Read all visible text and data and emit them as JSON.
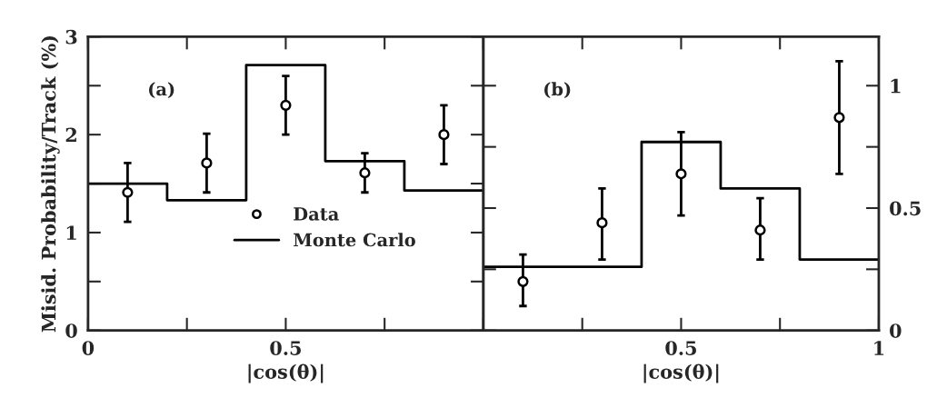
{
  "chart_data": [
    {
      "type": "scatter",
      "xlabel": "|cos(θ)|",
      "ylabel": "Misid. Probability/Track (%)",
      "annotations": [
        "(a)"
      ],
      "xlim": [
        0,
        1
      ],
      "ylim": [
        0,
        3
      ],
      "xticks": [
        0,
        {
          "value": 0.25,
          "label": null
        },
        0.5,
        {
          "value": 0.75,
          "label": null
        },
        {
          "value": 1,
          "label": null
        }
      ],
      "yticks": [
        0,
        {
          "value": 0.5,
          "label": null
        },
        1,
        {
          "value": 1.5,
          "label": null
        },
        2,
        {
          "value": 2.5,
          "label": null
        },
        3
      ],
      "legend": "bottom",
      "grid": false,
      "series": [
        {
          "name": "Data",
          "marker": "circle",
          "color": "#000000",
          "x": [
            0.1,
            0.3,
            0.5,
            0.7,
            0.9
          ],
          "values": [
            1.41,
            1.71,
            2.3,
            1.61,
            2.0
          ],
          "errors": [
            0.3,
            0.3,
            0.3,
            0.2,
            0.3
          ]
        },
        {
          "name": "Monte Carlo",
          "type": "step",
          "color": "#000000",
          "x": [
            0,
            0.2,
            0.4,
            0.6,
            0.8,
            1
          ],
          "values": [
            1.5,
            1.33,
            2.71,
            1.73,
            1.43,
            1.43
          ]
        }
      ]
    },
    {
      "type": "scatter",
      "xlabel": "|cos(θ)|",
      "annotations": [
        "(b)"
      ],
      "xlim": [
        0,
        1
      ],
      "ylim": [
        0,
        1.2
      ],
      "xticks": [
        {
          "value": 0,
          "label": null
        },
        {
          "value": 0.25,
          "label": null
        },
        0.5,
        {
          "value": 0.75,
          "label": null
        },
        1
      ],
      "yticks": [
        0,
        {
          "value": 0.25,
          "label": null
        },
        0.5,
        {
          "value": 0.75,
          "label": null
        },
        1
      ],
      "grid": false,
      "series": [
        {
          "marker": "circle",
          "color": "#000000",
          "x": [
            0.1,
            0.3,
            0.5,
            0.7,
            0.9
          ],
          "values": [
            0.2,
            0.44,
            0.64,
            0.41,
            0.87
          ],
          "errors": [
            [
              0.1,
              0.31
            ],
            [
              0.29,
              0.58
            ],
            [
              0.47,
              0.81
            ],
            [
              0.29,
              0.54
            ],
            [
              0.64,
              1.1
            ]
          ]
        },
        {
          "type": "step",
          "color": "#000000",
          "x": [
            0,
            0.2,
            0.4,
            0.6,
            0.8,
            1
          ],
          "values": [
            0.26,
            0.26,
            0.77,
            0.58,
            0.29,
            0.29
          ]
        }
      ]
    }
  ]
}
